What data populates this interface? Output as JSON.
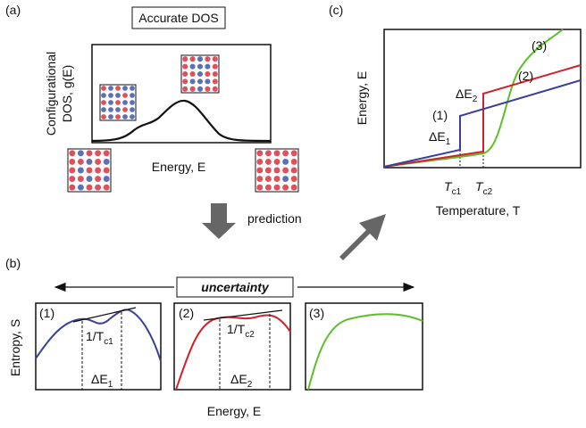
{
  "panel_a": {
    "label": "(a)",
    "title": "Accurate DOS",
    "y_label_line1": "Configurational",
    "y_label_line2": "DOS, g(E)",
    "x_label": "Energy, E"
  },
  "prediction": "prediction",
  "panel_b": {
    "label": "(b)",
    "uncertainty": "uncertainty",
    "y_label": "Entropy, S",
    "x_label": "Energy, E",
    "plots": [
      {
        "label": "(1)",
        "slope": {
          "main": "1/T",
          "sub": "c1"
        },
        "delta": {
          "main": "ΔE",
          "sub": "1"
        }
      },
      {
        "label": "(2)",
        "slope": {
          "main": "1/T",
          "sub": "c2"
        },
        "delta": {
          "main": "ΔE",
          "sub": "2"
        }
      },
      {
        "label": "(3)"
      }
    ]
  },
  "panel_c": {
    "label": "(c)",
    "y_label": "Energy, E",
    "x_label": "Temperature, T",
    "curve_labels": [
      "(1)",
      "(2)",
      "(3)"
    ],
    "delta1": {
      "main": "ΔE",
      "sub": "1"
    },
    "delta2": {
      "main": "ΔE",
      "sub": "2"
    },
    "tc1": {
      "main": "T",
      "sub": "c1"
    },
    "tc2": {
      "main": "T",
      "sub": "c2"
    }
  }
}
